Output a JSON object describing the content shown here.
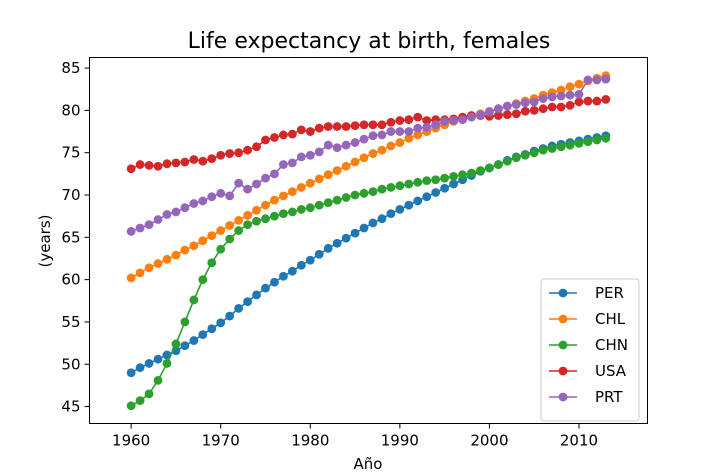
{
  "chart_data": {
    "type": "line",
    "title": "Life expectancy at birth, females",
    "xlabel": "Año",
    "ylabel": "(years)",
    "xlim": [
      1955.35,
      2017.65
    ],
    "ylim": [
      43.0,
      86.25
    ],
    "xticks": [
      1960,
      1970,
      1980,
      1990,
      2000,
      2010
    ],
    "yticks": [
      45,
      50,
      55,
      60,
      65,
      70,
      75,
      80,
      85
    ],
    "grid": false,
    "legend_position": "lower-right",
    "marker": "circle",
    "x": [
      1960,
      1961,
      1962,
      1963,
      1964,
      1965,
      1966,
      1967,
      1968,
      1969,
      1970,
      1971,
      1972,
      1973,
      1974,
      1975,
      1976,
      1977,
      1978,
      1979,
      1980,
      1981,
      1982,
      1983,
      1984,
      1985,
      1986,
      1987,
      1988,
      1989,
      1990,
      1991,
      1992,
      1993,
      1994,
      1995,
      1996,
      1997,
      1998,
      1999,
      2000,
      2001,
      2002,
      2003,
      2004,
      2005,
      2006,
      2007,
      2008,
      2009,
      2010,
      2011,
      2012,
      2013
    ],
    "series": [
      {
        "name": "PER",
        "color": "#1f77b4",
        "values": [
          49.0,
          49.6,
          50.1,
          50.6,
          51.1,
          51.6,
          52.2,
          52.8,
          53.5,
          54.2,
          54.9,
          55.7,
          56.6,
          57.4,
          58.2,
          59.0,
          59.7,
          60.4,
          61.0,
          61.7,
          62.3,
          63.0,
          63.7,
          64.3,
          64.9,
          65.5,
          66.1,
          66.7,
          67.2,
          67.8,
          68.3,
          68.8,
          69.3,
          69.8,
          70.3,
          70.8,
          71.3,
          71.8,
          72.3,
          72.8,
          73.2,
          73.6,
          74.1,
          74.5,
          74.8,
          75.2,
          75.5,
          75.8,
          76.0,
          76.2,
          76.4,
          76.6,
          76.8,
          77.0
        ]
      },
      {
        "name": "CHL",
        "color": "#ff7f0e",
        "values": [
          60.2,
          60.8,
          61.4,
          61.9,
          62.4,
          62.9,
          63.5,
          64.0,
          64.6,
          65.2,
          65.8,
          66.4,
          67.0,
          67.6,
          68.2,
          68.8,
          69.4,
          69.9,
          70.4,
          70.9,
          71.4,
          71.9,
          72.4,
          72.9,
          73.4,
          73.9,
          74.4,
          74.9,
          75.3,
          75.8,
          76.2,
          76.7,
          77.1,
          77.5,
          77.9,
          78.3,
          78.7,
          79.0,
          79.3,
          79.6,
          79.9,
          80.2,
          80.5,
          80.8,
          81.1,
          81.4,
          81.8,
          82.1,
          82.4,
          82.8,
          83.1,
          83.5,
          83.8,
          84.1
        ]
      },
      {
        "name": "CHN",
        "color": "#2ca02c",
        "values": [
          45.1,
          45.7,
          46.5,
          48.1,
          50.1,
          52.4,
          55.0,
          57.6,
          60.0,
          62.0,
          63.6,
          64.8,
          65.8,
          66.5,
          66.9,
          67.2,
          67.5,
          67.8,
          68.0,
          68.3,
          68.5,
          68.8,
          69.1,
          69.4,
          69.7,
          70.0,
          70.2,
          70.4,
          70.7,
          70.9,
          71.1,
          71.3,
          71.5,
          71.7,
          71.8,
          72.0,
          72.2,
          72.4,
          72.6,
          72.9,
          73.2,
          73.6,
          74.0,
          74.4,
          74.7,
          75.0,
          75.3,
          75.5,
          75.7,
          75.9,
          76.1,
          76.3,
          76.5,
          76.7
        ]
      },
      {
        "name": "USA",
        "color": "#d62728",
        "values": [
          73.1,
          73.6,
          73.5,
          73.4,
          73.7,
          73.8,
          73.9,
          74.2,
          74.0,
          74.3,
          74.7,
          74.9,
          75.0,
          75.3,
          75.7,
          76.5,
          76.8,
          77.1,
          77.2,
          77.7,
          77.5,
          77.9,
          78.1,
          78.1,
          78.1,
          78.2,
          78.3,
          78.3,
          78.3,
          78.6,
          78.8,
          78.9,
          79.2,
          78.8,
          78.9,
          78.9,
          79.0,
          79.2,
          79.4,
          79.4,
          79.3,
          79.4,
          79.5,
          79.6,
          79.9,
          80.0,
          80.2,
          80.4,
          80.4,
          80.6,
          81.0,
          81.1,
          81.1,
          81.3
        ]
      },
      {
        "name": "PRT",
        "color": "#9467bd",
        "values": [
          65.7,
          66.1,
          66.5,
          67.1,
          67.7,
          68.0,
          68.5,
          69.0,
          69.3,
          69.8,
          70.2,
          69.9,
          71.4,
          70.7,
          71.3,
          72.0,
          72.5,
          73.6,
          73.8,
          74.5,
          74.7,
          75.1,
          75.9,
          75.6,
          75.9,
          76.2,
          76.6,
          77.0,
          77.1,
          77.5,
          77.5,
          77.5,
          77.9,
          78.0,
          78.3,
          78.7,
          78.8,
          78.9,
          79.2,
          79.5,
          79.8,
          80.2,
          80.5,
          80.7,
          80.9,
          81.0,
          81.4,
          81.6,
          81.7,
          81.8,
          81.9,
          83.6,
          83.6,
          83.7
        ]
      }
    ]
  }
}
